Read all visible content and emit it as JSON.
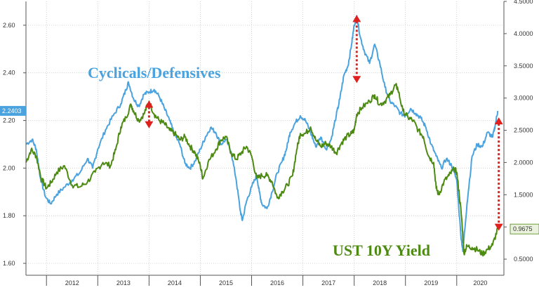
{
  "chart_data": {
    "type": "line",
    "title": "",
    "xlabel": "",
    "x_ticks": [
      "2012",
      "2013",
      "2014",
      "2015",
      "2016",
      "2017",
      "2018",
      "2019",
      "2020"
    ],
    "x_range": [
      2011.6,
      2020.92
    ],
    "y_left": {
      "ticks": [
        "1.60",
        "1.80",
        "2.00",
        "2.20",
        "2.40",
        "2.60"
      ],
      "range": [
        1.55,
        2.7
      ]
    },
    "y_right": {
      "ticks": [
        "0.5000",
        "1.0000",
        "1.5000",
        "2.0000",
        "2.5000",
        "3.0000",
        "3.5000",
        "4.0000",
        "4.5000"
      ],
      "range": [
        0.25,
        4.5
      ]
    },
    "grid": true,
    "series": [
      {
        "name": "Cyclicals/Defensives",
        "axis": "left",
        "color": "#4aa3df",
        "last_value": "2.2403",
        "points": [
          [
            2011.6,
            2.1
          ],
          [
            2011.72,
            2.12
          ],
          [
            2011.8,
            2.08
          ],
          [
            2011.88,
            1.96
          ],
          [
            2011.98,
            1.88
          ],
          [
            2012.08,
            1.85
          ],
          [
            2012.2,
            1.89
          ],
          [
            2012.35,
            1.92
          ],
          [
            2012.5,
            1.95
          ],
          [
            2012.65,
            1.98
          ],
          [
            2012.8,
            2.04
          ],
          [
            2012.9,
            2.0
          ],
          [
            2013.0,
            2.08
          ],
          [
            2013.15,
            2.16
          ],
          [
            2013.3,
            2.22
          ],
          [
            2013.45,
            2.27
          ],
          [
            2013.55,
            2.33
          ],
          [
            2013.6,
            2.36
          ],
          [
            2013.7,
            2.29
          ],
          [
            2013.8,
            2.26
          ],
          [
            2013.9,
            2.31
          ],
          [
            2014.0,
            2.32
          ],
          [
            2014.1,
            2.33
          ],
          [
            2014.2,
            2.3
          ],
          [
            2014.3,
            2.25
          ],
          [
            2014.4,
            2.2
          ],
          [
            2014.5,
            2.14
          ],
          [
            2014.6,
            2.1
          ],
          [
            2014.7,
            2.02
          ],
          [
            2014.8,
            2.0
          ],
          [
            2014.9,
            2.03
          ],
          [
            2015.0,
            2.08
          ],
          [
            2015.1,
            2.13
          ],
          [
            2015.2,
            2.17
          ],
          [
            2015.3,
            2.15
          ],
          [
            2015.4,
            2.1
          ],
          [
            2015.5,
            2.12
          ],
          [
            2015.6,
            2.07
          ],
          [
            2015.7,
            1.95
          ],
          [
            2015.78,
            1.82
          ],
          [
            2015.82,
            1.78
          ],
          [
            2015.9,
            1.86
          ],
          [
            2016.0,
            1.92
          ],
          [
            2016.1,
            1.97
          ],
          [
            2016.15,
            1.9
          ],
          [
            2016.2,
            1.85
          ],
          [
            2016.3,
            1.83
          ],
          [
            2016.4,
            1.9
          ],
          [
            2016.5,
            1.98
          ],
          [
            2016.6,
            2.03
          ],
          [
            2016.68,
            2.08
          ],
          [
            2016.75,
            2.15
          ],
          [
            2016.85,
            2.19
          ],
          [
            2016.95,
            2.22
          ],
          [
            2017.05,
            2.2
          ],
          [
            2017.15,
            2.15
          ],
          [
            2017.25,
            2.09
          ],
          [
            2017.35,
            2.13
          ],
          [
            2017.45,
            2.08
          ],
          [
            2017.55,
            2.12
          ],
          [
            2017.65,
            2.22
          ],
          [
            2017.72,
            2.29
          ],
          [
            2017.8,
            2.39
          ],
          [
            2017.88,
            2.43
          ],
          [
            2017.95,
            2.52
          ],
          [
            2018.0,
            2.6
          ],
          [
            2018.05,
            2.64
          ],
          [
            2018.12,
            2.55
          ],
          [
            2018.2,
            2.49
          ],
          [
            2018.3,
            2.44
          ],
          [
            2018.4,
            2.52
          ],
          [
            2018.5,
            2.44
          ],
          [
            2018.6,
            2.34
          ],
          [
            2018.7,
            2.28
          ],
          [
            2018.8,
            2.26
          ],
          [
            2018.9,
            2.23
          ],
          [
            2019.0,
            2.22
          ],
          [
            2019.1,
            2.25
          ],
          [
            2019.2,
            2.23
          ],
          [
            2019.3,
            2.21
          ],
          [
            2019.4,
            2.17
          ],
          [
            2019.5,
            2.1
          ],
          [
            2019.6,
            2.05
          ],
          [
            2019.7,
            2.0
          ],
          [
            2019.8,
            2.04
          ],
          [
            2019.9,
            2.01
          ],
          [
            2020.0,
            1.95
          ],
          [
            2020.08,
            1.72
          ],
          [
            2020.12,
            1.65
          ],
          [
            2020.2,
            1.85
          ],
          [
            2020.3,
            2.05
          ],
          [
            2020.4,
            2.1
          ],
          [
            2020.5,
            2.09
          ],
          [
            2020.6,
            2.15
          ],
          [
            2020.7,
            2.13
          ],
          [
            2020.75,
            2.18
          ],
          [
            2020.8,
            2.24
          ]
        ]
      },
      {
        "name": "UST 10Y Yield",
        "axis": "right",
        "color": "#4d8a12",
        "last_value": "0.9675",
        "points": [
          [
            2011.6,
            2.0
          ],
          [
            2011.7,
            2.2
          ],
          [
            2011.8,
            2.1
          ],
          [
            2011.9,
            1.75
          ],
          [
            2012.0,
            1.6
          ],
          [
            2012.1,
            1.7
          ],
          [
            2012.2,
            1.85
          ],
          [
            2012.35,
            1.95
          ],
          [
            2012.5,
            1.65
          ],
          [
            2012.65,
            1.62
          ],
          [
            2012.8,
            1.7
          ],
          [
            2012.95,
            1.85
          ],
          [
            2013.1,
            2.0
          ],
          [
            2013.25,
            1.95
          ],
          [
            2013.35,
            2.2
          ],
          [
            2013.45,
            2.55
          ],
          [
            2013.55,
            2.7
          ],
          [
            2013.65,
            2.9
          ],
          [
            2013.7,
            2.8
          ],
          [
            2013.8,
            2.65
          ],
          [
            2013.9,
            2.75
          ],
          [
            2014.0,
            2.95
          ],
          [
            2014.1,
            2.75
          ],
          [
            2014.2,
            2.65
          ],
          [
            2014.3,
            2.6
          ],
          [
            2014.4,
            2.5
          ],
          [
            2014.5,
            2.45
          ],
          [
            2014.6,
            2.35
          ],
          [
            2014.7,
            2.4
          ],
          [
            2014.8,
            2.25
          ],
          [
            2014.9,
            2.15
          ],
          [
            2015.0,
            1.95
          ],
          [
            2015.05,
            1.75
          ],
          [
            2015.15,
            2.0
          ],
          [
            2015.3,
            2.2
          ],
          [
            2015.4,
            2.35
          ],
          [
            2015.5,
            2.4
          ],
          [
            2015.6,
            2.15
          ],
          [
            2015.7,
            2.05
          ],
          [
            2015.8,
            2.15
          ],
          [
            2015.9,
            2.25
          ],
          [
            2016.0,
            2.1
          ],
          [
            2016.1,
            1.75
          ],
          [
            2016.2,
            1.8
          ],
          [
            2016.3,
            1.8
          ],
          [
            2016.4,
            1.7
          ],
          [
            2016.5,
            1.45
          ],
          [
            2016.6,
            1.55
          ],
          [
            2016.7,
            1.65
          ],
          [
            2016.8,
            1.8
          ],
          [
            2016.88,
            2.2
          ],
          [
            2016.95,
            2.45
          ],
          [
            2017.05,
            2.45
          ],
          [
            2017.15,
            2.55
          ],
          [
            2017.25,
            2.35
          ],
          [
            2017.35,
            2.25
          ],
          [
            2017.45,
            2.3
          ],
          [
            2017.55,
            2.25
          ],
          [
            2017.65,
            2.15
          ],
          [
            2017.75,
            2.3
          ],
          [
            2017.85,
            2.4
          ],
          [
            2017.95,
            2.45
          ],
          [
            2018.0,
            2.5
          ],
          [
            2018.05,
            2.75
          ],
          [
            2018.15,
            2.85
          ],
          [
            2018.3,
            2.95
          ],
          [
            2018.4,
            3.05
          ],
          [
            2018.5,
            2.9
          ],
          [
            2018.6,
            2.95
          ],
          [
            2018.7,
            3.05
          ],
          [
            2018.8,
            3.2
          ],
          [
            2018.85,
            3.15
          ],
          [
            2018.95,
            2.8
          ],
          [
            2019.05,
            2.7
          ],
          [
            2019.15,
            2.65
          ],
          [
            2019.25,
            2.5
          ],
          [
            2019.35,
            2.4
          ],
          [
            2019.45,
            2.1
          ],
          [
            2019.55,
            2.0
          ],
          [
            2019.6,
            1.6
          ],
          [
            2019.65,
            1.5
          ],
          [
            2019.75,
            1.7
          ],
          [
            2019.85,
            1.8
          ],
          [
            2019.95,
            1.9
          ],
          [
            2020.0,
            1.85
          ],
          [
            2020.05,
            1.5
          ],
          [
            2020.1,
            1.1
          ],
          [
            2020.14,
            0.6
          ],
          [
            2020.2,
            0.7
          ],
          [
            2020.3,
            0.68
          ],
          [
            2020.4,
            0.65
          ],
          [
            2020.5,
            0.58
          ],
          [
            2020.6,
            0.65
          ],
          [
            2020.7,
            0.72
          ],
          [
            2020.8,
            0.97
          ]
        ]
      }
    ],
    "annotations": [
      {
        "type": "double-arrow",
        "color": "#e0201d",
        "x": 2014.0,
        "y_from": 2.28,
        "y_to": 2.17,
        "axis": "left"
      },
      {
        "type": "double-arrow",
        "color": "#e0201d",
        "x": 2018.05,
        "y_from": 2.64,
        "y_to": 2.36,
        "axis": "left"
      },
      {
        "type": "double-arrow",
        "color": "#e0201d",
        "x": 2020.82,
        "y_from": 2.21,
        "y_to": 1.74,
        "axis": "left"
      }
    ]
  }
}
